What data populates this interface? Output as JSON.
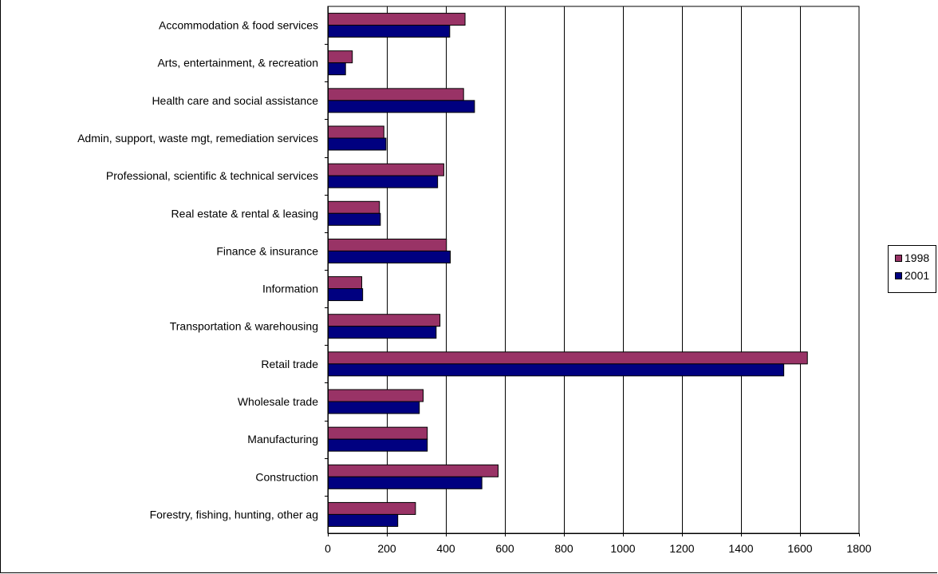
{
  "chart_data": {
    "type": "bar",
    "orientation": "horizontal",
    "title": "",
    "xlabel": "",
    "ylabel": "",
    "xlim": [
      0,
      1800
    ],
    "x_ticks": [
      "0",
      "200",
      "400",
      "600",
      "800",
      "1000",
      "1200",
      "1400",
      "1600",
      "1800"
    ],
    "grid": true,
    "legend_position": "right",
    "categories": [
      "Accommodation & food services",
      "Arts, entertainment, & recreation",
      "Health care and social assistance",
      "Admin, support, waste mgt, remediation services",
      "Professional, scientific & technical services",
      "Real estate & rental & leasing",
      "Finance & insurance",
      "Information",
      "Transportation & warehousing",
      "Retail trade",
      "Wholesale trade",
      "Manufacturing",
      "Construction",
      "Forestry, fishing, hunting, other ag"
    ],
    "series": [
      {
        "name": "1998",
        "color": "#993366",
        "values": [
          465,
          83,
          460,
          190,
          393,
          175,
          402,
          115,
          380,
          1625,
          323,
          337,
          577,
          297
        ]
      },
      {
        "name": "2001",
        "color": "#000080",
        "values": [
          413,
          60,
          497,
          197,
          372,
          178,
          415,
          118,
          367,
          1545,
          310,
          337,
          522,
          237
        ]
      }
    ]
  }
}
